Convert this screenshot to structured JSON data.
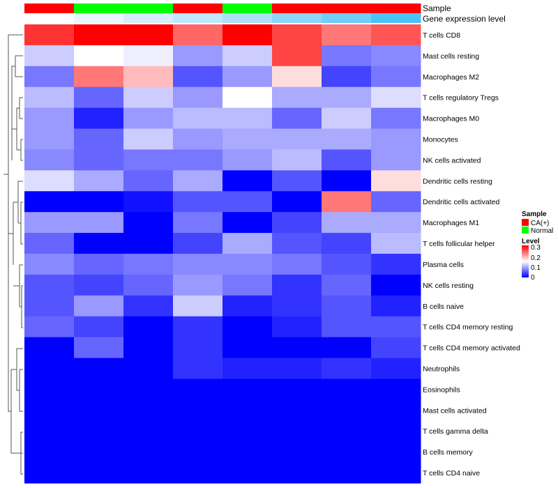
{
  "chart_data": {
    "type": "heatmap",
    "rows": [
      "T cells CD8",
      "Mast cells resting",
      "Macrophages M2",
      "T cells regulatory  Tregs",
      "Macrophages M0",
      "Monocytes",
      "NK cells activated",
      "Dendritic cells resting",
      "Dendritic cells activated",
      "Macrophages M1",
      "T cells follicular helper",
      "Plasma cells",
      "NK cells resting",
      "B cells naive",
      "T cells CD4 memory resting",
      "T cells CD4 memory activated",
      "Neutrophils",
      "Eosinophils",
      "Mast cells activated",
      "T cells gamma delta",
      "B cells memory",
      "T cells CD4 naive"
    ],
    "values": [
      [
        0.27,
        0.3,
        0.3,
        0.24,
        0.3,
        0.26,
        0.23,
        0.25
      ],
      [
        0.12,
        0.15,
        0.14,
        0.09,
        0.12,
        0.26,
        0.07,
        0.08
      ],
      [
        0.07,
        0.23,
        0.19,
        0.05,
        0.09,
        0.17,
        0.04,
        0.07
      ],
      [
        0.11,
        0.06,
        0.12,
        0.09,
        0.15,
        0.1,
        0.1,
        0.13
      ],
      [
        0.09,
        0.02,
        0.09,
        0.11,
        0.11,
        0.06,
        0.12,
        0.07
      ],
      [
        0.09,
        0.06,
        0.12,
        0.09,
        0.1,
        0.1,
        0.1,
        0.09
      ],
      [
        0.08,
        0.06,
        0.07,
        0.07,
        0.09,
        0.11,
        0.05,
        0.09
      ],
      [
        0.13,
        0.1,
        0.06,
        0.1,
        0.0,
        0.05,
        0.0,
        0.17
      ],
      [
        0.0,
        0.0,
        0.01,
        0.05,
        0.05,
        0.0,
        0.23,
        0.06
      ],
      [
        0.09,
        0.09,
        0.0,
        0.07,
        0.0,
        0.04,
        0.1,
        0.1
      ],
      [
        0.06,
        0.0,
        0.0,
        0.04,
        0.1,
        0.05,
        0.04,
        0.11
      ],
      [
        0.08,
        0.06,
        0.07,
        0.08,
        0.08,
        0.07,
        0.05,
        0.03
      ],
      [
        0.05,
        0.04,
        0.06,
        0.09,
        0.07,
        0.03,
        0.06,
        0.0
      ],
      [
        0.05,
        0.09,
        0.03,
        0.12,
        0.02,
        0.03,
        0.05,
        0.02
      ],
      [
        0.06,
        0.04,
        0.0,
        0.03,
        0.0,
        0.02,
        0.05,
        0.05
      ],
      [
        0.0,
        0.06,
        0.0,
        0.03,
        0.0,
        0.0,
        0.0,
        0.04
      ],
      [
        0.0,
        0.0,
        0.0,
        0.03,
        0.02,
        0.02,
        0.03,
        0.02
      ],
      [
        0.0,
        0.0,
        0.0,
        0.0,
        0.0,
        0.0,
        0.0,
        0.0
      ],
      [
        0.0,
        0.0,
        0.0,
        0.0,
        0.0,
        0.0,
        0.0,
        0.0
      ],
      [
        0.0,
        0.0,
        0.0,
        0.0,
        0.0,
        0.0,
        0.0,
        0.0
      ],
      [
        0.0,
        0.0,
        0.0,
        0.0,
        0.0,
        0.0,
        0.0,
        0.0
      ],
      [
        0.0,
        0.0,
        0.0,
        0.0,
        0.0,
        0.0,
        0.0,
        0.0
      ]
    ],
    "annotations": {
      "sample_label": "Sample",
      "sample": [
        "CA(+)",
        "Normal",
        "Normal",
        "CA(+)",
        "Normal",
        "CA(+)",
        "CA(+)",
        "CA(+)"
      ],
      "gene_label": "Gene expression level",
      "gene_expression_colors": [
        "#FFFFFF",
        "#EAF6FD",
        "#D6EEFB",
        "#C1E7FA",
        "#ACE0F9",
        "#8FD5F7",
        "#72CCF6",
        "#4DC3F5"
      ]
    },
    "legend": {
      "sample_title": "Sample",
      "sample_entries": [
        {
          "label": "CA(+)",
          "color": "#FF0000"
        },
        {
          "label": "Normal",
          "color": "#00FF00"
        }
      ],
      "level_title": "Level",
      "level_ticks": [
        "0.3",
        "0.2",
        "0.1",
        "0"
      ],
      "range": [
        0,
        0.3
      ],
      "colors": {
        "low": "#0000FF",
        "mid": "#FFFFFF",
        "high": "#FF0000"
      },
      "placement": "right"
    }
  }
}
